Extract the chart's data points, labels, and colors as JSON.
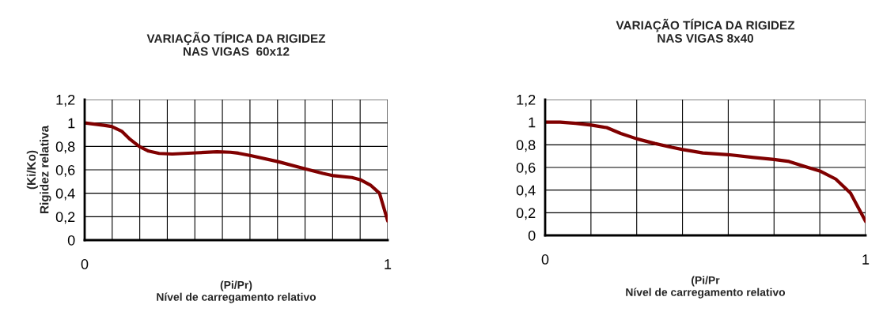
{
  "chart_data": [
    {
      "type": "line",
      "title": "VARIAÇÃO TÍPICA DA RIGIDEZ\nNAS VIGAS  60x12",
      "xlabel": "(Pi/Pr)\nNível de carregamento relativo",
      "ylabel": "(Ki/Ko)\nRigidez relativa",
      "x": [
        0,
        0.063,
        0.089,
        0.122,
        0.15,
        0.18,
        0.211,
        0.246,
        0.289,
        0.368,
        0.437,
        0.481,
        0.507,
        0.551,
        0.638,
        0.725,
        0.786,
        0.821,
        0.882,
        0.909,
        0.943,
        0.973,
        1.0
      ],
      "series": [
        {
          "color": "#800000",
          "values": [
            1.0,
            0.98,
            0.97,
            0.93,
            0.86,
            0.8,
            0.76,
            0.74,
            0.735,
            0.745,
            0.754,
            0.75,
            0.742,
            0.72,
            0.67,
            0.61,
            0.57,
            0.55,
            0.534,
            0.516,
            0.47,
            0.4,
            0.164
          ]
        }
      ],
      "xlim": [
        0,
        1
      ],
      "xticks": [
        0,
        {
          "value": 0.0909,
          "label": null
        },
        {
          "value": 0.1818,
          "label": null
        },
        {
          "value": 0.2727,
          "label": null
        },
        {
          "value": 0.3636,
          "label": null
        },
        {
          "value": 0.4545,
          "label": null
        },
        {
          "value": 0.5455,
          "label": null
        },
        {
          "value": 0.6364,
          "label": null
        },
        {
          "value": 0.7273,
          "label": null
        },
        {
          "value": 0.8182,
          "label": null
        },
        {
          "value": 0.9091,
          "label": null
        },
        1
      ],
      "ylim": [
        0,
        1.2
      ],
      "yticks": [
        {
          "value": 0,
          "label": "0"
        },
        {
          "value": 0.2,
          "label": "0,2"
        },
        {
          "value": 0.4,
          "label": "0,4"
        },
        {
          "value": 0.6,
          "label": "0,6"
        },
        {
          "value": 0.8,
          "label": "0,8"
        },
        {
          "value": 1,
          "label": "1"
        },
        {
          "value": 1.2,
          "label": "1,2"
        }
      ],
      "grid": true,
      "marker": "none",
      "line_style": "solid"
    },
    {
      "type": "line",
      "title": "VARIAÇÃO TÍPICA DA RIGIDEZ\nNAS VIGAS 8x40",
      "xlabel": "(Pi/Pr\nNível de carregamento relativo",
      "x": [
        0,
        0.047,
        0.095,
        0.144,
        0.192,
        0.236,
        0.287,
        0.342,
        0.395,
        0.43,
        0.492,
        0.571,
        0.651,
        0.714,
        0.761,
        0.81,
        0.857,
        0.907,
        0.953,
        1.0
      ],
      "series": [
        {
          "color": "#800000",
          "values": [
            1.0,
            1.0,
            0.99,
            0.974,
            0.952,
            0.9,
            0.852,
            0.812,
            0.778,
            0.758,
            0.728,
            0.713,
            0.688,
            0.671,
            0.653,
            0.609,
            0.569,
            0.497,
            0.373,
            0.124
          ]
        }
      ],
      "xlim": [
        0,
        1
      ],
      "xticks": [
        0,
        {
          "value": 0.1429,
          "label": null
        },
        {
          "value": 0.2857,
          "label": null
        },
        {
          "value": 0.4286,
          "label": null
        },
        {
          "value": 0.5714,
          "label": null
        },
        {
          "value": 0.7143,
          "label": null
        },
        {
          "value": 0.8571,
          "label": null
        },
        1
      ],
      "ylim": [
        0,
        1.2
      ],
      "yticks": [
        {
          "value": 0,
          "label": "0"
        },
        {
          "value": 0.2,
          "label": "0,2"
        },
        {
          "value": 0.4,
          "label": "0,4"
        },
        {
          "value": 0.6,
          "label": "0,6"
        },
        {
          "value": 0.8,
          "label": "0,8"
        },
        {
          "value": 1,
          "label": "1"
        },
        {
          "value": 1.2,
          "label": "1,2"
        }
      ],
      "grid": true,
      "marker": "none",
      "line_style": "solid"
    }
  ]
}
